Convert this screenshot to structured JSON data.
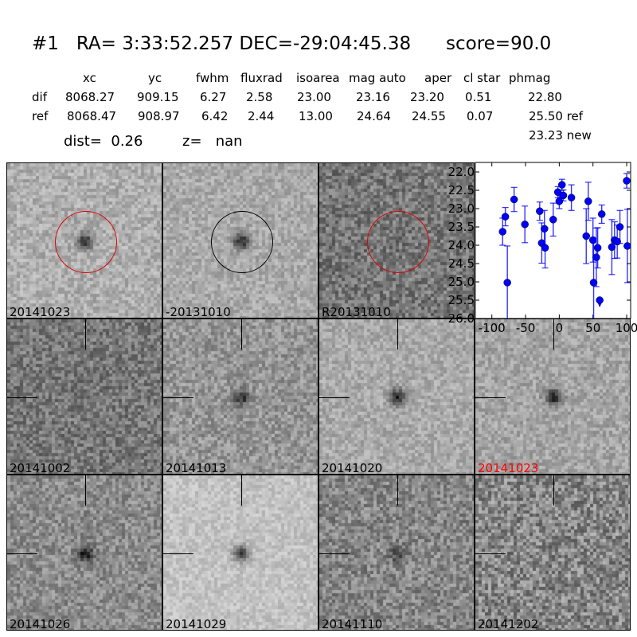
{
  "header": {
    "title": "#1   RA= 3:33:52.257 DEC=-29:04:45.38      score=90.0",
    "columns": [
      "xc",
      "yc",
      "fwhm",
      "fluxrad",
      "isoarea",
      "mag auto",
      "aper",
      "cl star",
      "phmag"
    ],
    "rows": [
      {
        "label": "dif",
        "values": [
          "8068.27",
          "909.15",
          "6.27",
          "2.58",
          "23.00",
          "23.16",
          "23.20",
          "0.51",
          "22.80"
        ]
      },
      {
        "label": "ref",
        "values": [
          "8068.47",
          "908.97",
          "6.42",
          "2.44",
          "13.00",
          "24.64",
          "24.55",
          "0.07",
          "25.50 ref"
        ]
      }
    ],
    "extra_phmag": "23.23 new",
    "dist": "dist=  0.26",
    "z": "z=   nan"
  },
  "panels": [
    {
      "label": "20141023",
      "circle": "#e00000"
    },
    {
      "label": "-20131010",
      "circle": "#000000"
    },
    {
      "label": "R20131010",
      "circle": "#e00000"
    },
    {
      "label": "20141002"
    },
    {
      "label": "20141013"
    },
    {
      "label": "20141020"
    },
    {
      "label": "20141023",
      "label_color": "#ff0000"
    },
    {
      "label": "20141026"
    },
    {
      "label": "20141029"
    },
    {
      "label": "20141110"
    },
    {
      "label": "20141202"
    }
  ],
  "chart_data": {
    "type": "scatter",
    "title": "",
    "xlabel": "",
    "ylabel": "",
    "xlim": [
      -110,
      105
    ],
    "ylim": [
      26.0,
      21.8
    ],
    "y_inverted": true,
    "xticks": [
      "-100",
      "-50",
      "0",
      "50",
      "100"
    ],
    "yticks": [
      "22.0",
      "22.5",
      "23.0",
      "23.5",
      "24.0",
      "24.5",
      "25.0",
      "25.5",
      "26.0"
    ],
    "color": "#0000ff",
    "points": [
      {
        "x": -84,
        "y": 23.63,
        "err": 0.37
      },
      {
        "x": -80,
        "y": 23.22,
        "err": 0.25
      },
      {
        "x": -77,
        "y": 25.02,
        "err": 1.0
      },
      {
        "x": -67,
        "y": 22.75,
        "err": 0.33
      },
      {
        "x": -51,
        "y": 23.43,
        "err": 0.5
      },
      {
        "x": -29,
        "y": 23.07,
        "err": 0.25
      },
      {
        "x": -26,
        "y": 23.94,
        "err": 0.55
      },
      {
        "x": -22,
        "y": 23.55,
        "err": 0.5
      },
      {
        "x": -21,
        "y": 24.07,
        "err": 0.55
      },
      {
        "x": -9,
        "y": 23.3,
        "err": 0.45
      },
      {
        "x": -2,
        "y": 22.55,
        "err": 0.15
      },
      {
        "x": 0,
        "y": 22.8,
        "err": 0.2
      },
      {
        "x": 4,
        "y": 22.35,
        "err": 0.15
      },
      {
        "x": 6,
        "y": 22.64,
        "err": 0.15
      },
      {
        "x": 18,
        "y": 22.7,
        "err": 0.35
      },
      {
        "x": 40,
        "y": 23.75,
        "err": 0.75
      },
      {
        "x": 43,
        "y": 22.8,
        "err": 0.52
      },
      {
        "x": 50,
        "y": 23.86,
        "err": 0.6
      },
      {
        "x": 51,
        "y": 25.02,
        "err": 1.2
      },
      {
        "x": 55,
        "y": 24.33,
        "err": 0.8
      },
      {
        "x": 57,
        "y": 24.07,
        "err": 0.55
      },
      {
        "x": 60,
        "y": 25.5,
        "upper_limit": true
      },
      {
        "x": 63,
        "y": 23.15,
        "err": 0.25
      },
      {
        "x": 78,
        "y": 24.05,
        "err": 0.75
      },
      {
        "x": 82,
        "y": 23.86,
        "err": 0.5
      },
      {
        "x": 86,
        "y": 23.9,
        "err": 0.45
      },
      {
        "x": 90,
        "y": 23.5,
        "err": 0.45
      },
      {
        "x": 100,
        "y": 22.24,
        "err": 0.2
      },
      {
        "x": 101,
        "y": 24.02,
        "err": 1.0
      }
    ]
  }
}
